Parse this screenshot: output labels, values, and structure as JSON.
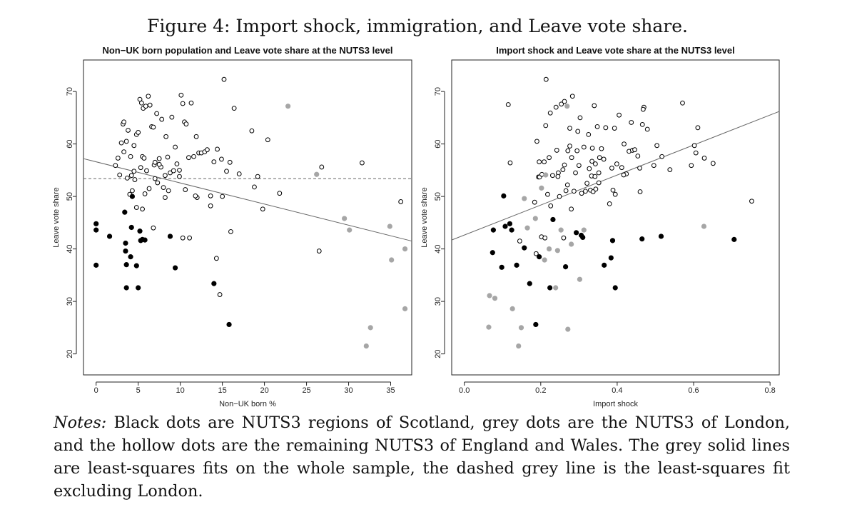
{
  "figure_title": "Figure 4: Import shock, immigration, and Leave vote share.",
  "notes": {
    "label": "Notes:",
    "text": "Black dots are NUTS3 regions of Scotland, grey dots are the NUTS3 of London, and the hollow dots are the remaining NUTS3 of England and Wales. The grey solid lines are least-squares fits on the whole sample, the dashed grey line is the least-squares fit excluding London."
  },
  "colors": {
    "scotland": "#000000",
    "london": "#a6a6a6",
    "england_wales": "#000000",
    "fit_line": "#666666"
  },
  "chart_data": [
    {
      "type": "scatter",
      "title": "Non−UK born population and Leave vote share at the NUTS3 level",
      "xlabel": "Non−UK born %",
      "ylabel": "Leave vote share",
      "xlim": [
        -1.5,
        37.5
      ],
      "ylim": [
        16,
        76
      ],
      "xticks": [
        0,
        5,
        10,
        15,
        20,
        25,
        30,
        35
      ],
      "yticks": [
        20,
        30,
        40,
        50,
        60,
        70
      ],
      "grid": false,
      "series": [
        {
          "group": "scotland",
          "marker": "filled-black",
          "x": [
            0.0,
            0.0,
            0.0,
            1.6,
            3.4,
            3.5,
            3.5,
            3.6,
            3.6,
            4.1,
            4.2,
            4.3,
            4.8,
            5.0,
            5.2,
            5.3,
            5.5,
            5.8,
            8.8,
            9.4,
            14.0,
            15.8
          ],
          "y": [
            44.8,
            43.6,
            36.9,
            42.4,
            47.0,
            39.6,
            41.1,
            37.0,
            32.6,
            38.5,
            44.1,
            50.0,
            36.8,
            32.6,
            43.4,
            41.6,
            41.8,
            41.7,
            42.4,
            36.4,
            33.4,
            25.6
          ]
        },
        {
          "group": "london",
          "marker": "filled-grey",
          "x": [
            22.8,
            26.2,
            29.5,
            30.1,
            32.1,
            32.6,
            34.9,
            35.1,
            36.7,
            36.7
          ],
          "y": [
            67.2,
            54.2,
            45.8,
            43.6,
            21.5,
            25.0,
            44.3,
            37.9,
            28.6,
            40.0
          ]
        },
        {
          "group": "england_wales",
          "marker": "hollow",
          "x": [
            2.3,
            2.6,
            2.8,
            3.0,
            3.2,
            3.3,
            3.3,
            3.6,
            3.7,
            3.8,
            4.1,
            4.0,
            4.2,
            4.3,
            4.5,
            4.6,
            4.8,
            5.0,
            5.2,
            5.3,
            5.4,
            5.5,
            5.6,
            5.7,
            5.9,
            6.0,
            6.2,
            6.4,
            6.6,
            6.8,
            6.9,
            7.0,
            7.2,
            7.3,
            7.5,
            7.7,
            7.8,
            8.0,
            8.2,
            8.3,
            8.5,
            8.8,
            9.0,
            9.2,
            9.4,
            9.6,
            9.9,
            10.1,
            10.3,
            10.5,
            10.7,
            11.0,
            11.3,
            11.6,
            11.9,
            12.2,
            12.5,
            12.9,
            13.2,
            13.6,
            14.0,
            14.4,
            14.9,
            15.2,
            15.5,
            15.9,
            16.4,
            17.0,
            18.5,
            18.8,
            19.2,
            19.8,
            20.4,
            21.8,
            26.5,
            26.8,
            31.6,
            36.2,
            5.8,
            6.3,
            7.0,
            10.3,
            11.1,
            15.0,
            16.0,
            10.6,
            13.6,
            14.7,
            4.5,
            4.8,
            5.5,
            8.6,
            9.9,
            12.0,
            6.8,
            7.5,
            11.8,
            8.2,
            14.3
          ],
          "y": [
            55.9,
            57.3,
            54.1,
            60.2,
            63.8,
            58.5,
            64.2,
            60.5,
            53.5,
            62.6,
            57.6,
            50.4,
            54.0,
            51.1,
            59.7,
            53.2,
            61.8,
            62.2,
            68.5,
            55.5,
            67.8,
            57.6,
            66.8,
            57.3,
            67.2,
            54.9,
            69.1,
            67.4,
            63.3,
            63.2,
            56.0,
            56.5,
            65.8,
            52.6,
            57.2,
            55.6,
            64.7,
            51.7,
            54.0,
            61.4,
            57.5,
            54.5,
            65.1,
            54.9,
            59.4,
            56.2,
            55.0,
            69.3,
            67.7,
            64.2,
            63.8,
            57.4,
            67.8,
            57.6,
            61.4,
            58.3,
            58.3,
            58.5,
            58.9,
            50.1,
            56.6,
            59.0,
            57.1,
            72.3,
            54.8,
            56.5,
            66.8,
            54.3,
            62.5,
            51.8,
            53.8,
            47.6,
            60.8,
            50.6,
            39.6,
            55.6,
            56.4,
            49.0,
            50.5,
            51.5,
            53.4,
            42.1,
            42.1,
            50.0,
            43.3,
            51.3,
            48.2,
            31.3,
            54.8,
            47.9,
            47.6,
            51.1,
            53.8,
            49.8,
            44.0,
            56.1,
            50.1,
            49.8,
            38.2
          ]
        }
      ],
      "fit_lines": [
        {
          "style": "solid",
          "x": [
            -1.5,
            37.5
          ],
          "y": [
            57.2,
            41.5
          ]
        },
        {
          "style": "dashed",
          "x": [
            -1.5,
            37.5
          ],
          "y": [
            53.4,
            53.4
          ]
        }
      ]
    },
    {
      "type": "scatter",
      "title": "Import shock and Leave vote share at the NUTS3 level",
      "xlabel": "Import shock",
      "ylabel": "Leave vote share",
      "xlim": [
        -0.033,
        0.824
      ],
      "ylim": [
        16,
        76
      ],
      "xticks": [
        "0.0",
        "0.2",
        "0.4",
        "0.6",
        "0.8"
      ],
      "yticks": [
        20,
        30,
        40,
        50,
        60,
        70
      ],
      "grid": false,
      "series": [
        {
          "group": "scotland",
          "marker": "filled-black",
          "x": [
            0.074,
            0.076,
            0.098,
            0.103,
            0.107,
            0.119,
            0.124,
            0.137,
            0.157,
            0.171,
            0.187,
            0.196,
            0.224,
            0.232,
            0.265,
            0.293,
            0.306,
            0.31,
            0.366,
            0.384,
            0.388,
            0.395,
            0.465,
            0.515,
            0.706
          ],
          "y": [
            39.3,
            43.6,
            36.5,
            50.1,
            44.3,
            44.8,
            43.6,
            36.9,
            40.2,
            33.4,
            25.6,
            38.5,
            32.6,
            45.6,
            36.6,
            43.1,
            42.6,
            42.2,
            36.9,
            38.3,
            41.6,
            32.6,
            41.9,
            42.4,
            41.8
          ]
        },
        {
          "group": "london",
          "marker": "filled-grey",
          "x": [
            0.064,
            0.066,
            0.08,
            0.126,
            0.142,
            0.149,
            0.157,
            0.165,
            0.186,
            0.202,
            0.21,
            0.213,
            0.222,
            0.239,
            0.244,
            0.253,
            0.269,
            0.271,
            0.28,
            0.302,
            0.313,
            0.627
          ],
          "y": [
            25.1,
            31.1,
            30.6,
            28.6,
            21.5,
            25.0,
            49.6,
            44.0,
            45.8,
            51.6,
            37.9,
            54.1,
            40.0,
            32.6,
            39.7,
            43.6,
            67.2,
            24.7,
            40.9,
            34.2,
            43.6,
            44.3
          ]
        },
        {
          "group": "england_wales",
          "marker": "hollow",
          "x": [
            0.115,
            0.12,
            0.145,
            0.184,
            0.188,
            0.19,
            0.194,
            0.196,
            0.202,
            0.209,
            0.211,
            0.213,
            0.218,
            0.225,
            0.226,
            0.231,
            0.24,
            0.242,
            0.246,
            0.254,
            0.258,
            0.26,
            0.262,
            0.266,
            0.27,
            0.271,
            0.276,
            0.281,
            0.283,
            0.287,
            0.291,
            0.295,
            0.3,
            0.303,
            0.307,
            0.313,
            0.317,
            0.321,
            0.325,
            0.327,
            0.33,
            0.333,
            0.334,
            0.337,
            0.34,
            0.342,
            0.343,
            0.348,
            0.352,
            0.354,
            0.359,
            0.365,
            0.37,
            0.38,
            0.386,
            0.389,
            0.393,
            0.399,
            0.405,
            0.412,
            0.418,
            0.424,
            0.431,
            0.437,
            0.44,
            0.446,
            0.454,
            0.459,
            0.466,
            0.47,
            0.479,
            0.496,
            0.504,
            0.517,
            0.538,
            0.571,
            0.594,
            0.602,
            0.606,
            0.611,
            0.628,
            0.651,
            0.752,
            0.214,
            0.245,
            0.28,
            0.197,
            0.222,
            0.276,
            0.352,
            0.395,
            0.417,
            0.46,
            0.203,
            0.262,
            0.335,
            0.249,
            0.297,
            0.344,
            0.468
          ],
          "y": [
            67.5,
            56.4,
            41.5,
            48.9,
            39.1,
            60.5,
            53.7,
            56.6,
            42.3,
            56.6,
            42.1,
            63.5,
            50.4,
            65.9,
            48.2,
            54.0,
            67.0,
            58.8,
            54.5,
            67.6,
            55.1,
            42.1,
            68.1,
            51.1,
            52.2,
            58.7,
            63.0,
            57.4,
            69.1,
            51.0,
            54.5,
            58.7,
            55.9,
            65.0,
            50.6,
            59.4,
            51.0,
            52.5,
            61.8,
            55.3,
            51.2,
            53.9,
            56.7,
            50.9,
            67.3,
            53.8,
            56.2,
            63.3,
            54.5,
            57.4,
            59.1,
            57.1,
            63.1,
            48.6,
            55.4,
            51.2,
            63.0,
            56.2,
            65.5,
            55.5,
            60.0,
            54.3,
            58.6,
            64.1,
            58.8,
            58.9,
            57.7,
            55.4,
            63.7,
            67.0,
            62.8,
            55.9,
            59.7,
            57.6,
            55.1,
            67.8,
            55.9,
            59.7,
            58.3,
            63.1,
            57.3,
            56.3,
            49.1,
            72.3,
            53.8,
            47.6,
            53.7,
            57.4,
            59.6,
            52.6,
            50.4,
            54.1,
            50.9,
            54.2,
            56.0,
            59.2,
            50.0,
            62.4,
            51.4,
            66.6
          ]
        }
      ],
      "fit_lines": [
        {
          "style": "solid",
          "x": [
            -0.033,
            0.824
          ],
          "y": [
            41.7,
            66.2
          ]
        }
      ]
    }
  ]
}
